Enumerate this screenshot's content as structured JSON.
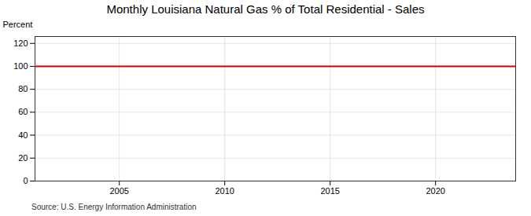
{
  "chart_data": {
    "type": "line",
    "title": "Monthly Louisiana Natural Gas % of Total Residential - Sales",
    "ylabel": "Percent",
    "source": "Source: U.S. Energy Information Administration",
    "x": [
      2001.0,
      2023.8
    ],
    "values": [
      100,
      100
    ],
    "color": "#cc0000",
    "xlim": [
      2001.0,
      2023.8
    ],
    "xticks": [
      2005,
      2010,
      2015,
      2020
    ],
    "ylim": [
      0,
      126
    ],
    "yticks": [
      0,
      20,
      40,
      60,
      80,
      100,
      120
    ],
    "grid": true
  }
}
